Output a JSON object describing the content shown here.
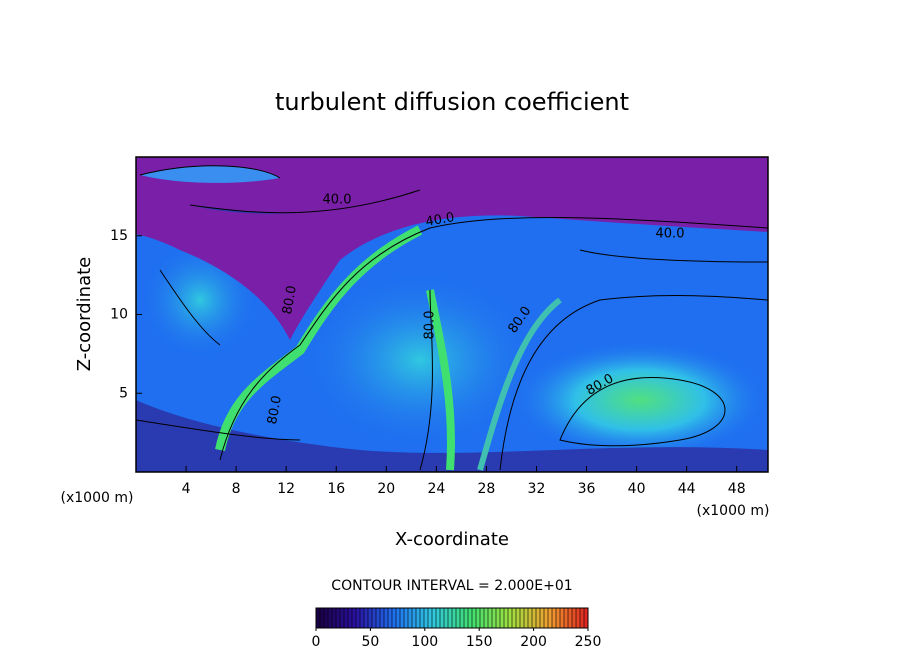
{
  "chart_data": {
    "type": "contour",
    "title": "turbulent diffusion coefficient",
    "x_label": "X-coordinate",
    "y_label": "Z-coordinate",
    "x_unit": "(x1000 m)",
    "y_unit": "(x1000 m)",
    "xlim": [
      0,
      50.5
    ],
    "xticks": [
      4,
      8,
      12,
      16,
      20,
      24,
      28,
      32,
      36,
      40,
      44,
      48
    ],
    "ylim": [
      0,
      20
    ],
    "yticks": [
      5,
      10,
      15
    ],
    "contour_interval": "CONTOUR INTERVAL = 2.000E+01",
    "contour_labels": [
      {
        "value": 40,
        "label": "40.0"
      },
      {
        "value": 40,
        "label": "40.0"
      },
      {
        "value": 40,
        "label": "40.0"
      },
      {
        "value": 80,
        "label": "80.0"
      },
      {
        "value": 80,
        "label": "80.0"
      },
      {
        "value": 80,
        "label": "80.0"
      },
      {
        "value": 80,
        "label": "80.0"
      },
      {
        "value": 80,
        "label": "80.0"
      }
    ],
    "clim": [
      0,
      250
    ],
    "colorbar_ticks": [
      0,
      50,
      100,
      150,
      200,
      250
    ],
    "colormap": [
      "#1a0040",
      "#2a10a0",
      "#1f6ff0",
      "#30c8e0",
      "#40e070",
      "#a0e040",
      "#f0a030",
      "#e02020"
    ]
  }
}
